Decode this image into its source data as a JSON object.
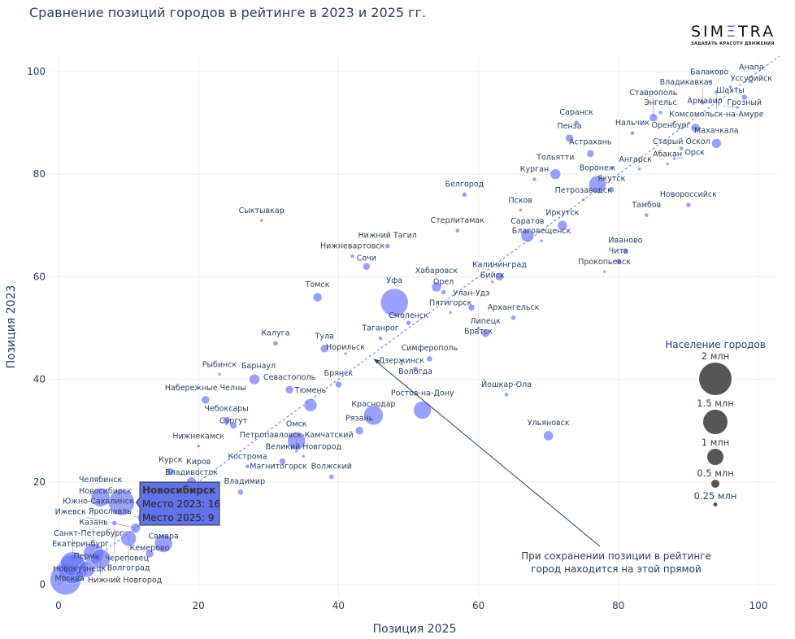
{
  "chart_data": {
    "type": "scatter",
    "title": "Сравнение позиций городов в рейтинге в 2023 и 2025 гг.",
    "xlabel": "Позиция 2025",
    "ylabel": "Позиция 2023",
    "xlim": [
      -1,
      103
    ],
    "ylim": [
      -2,
      103
    ],
    "xticks": [
      0,
      20,
      40,
      60,
      80,
      100
    ],
    "yticks": [
      0,
      20,
      40,
      60,
      80,
      100
    ],
    "grid": true,
    "marker_color": "#636efa",
    "size_legend": {
      "title": "Население городов",
      "entries": [
        {
          "label": "2 млн",
          "pop": 2
        },
        {
          "label": "1.5 млн",
          "pop": 1.5
        },
        {
          "label": "1 млн",
          "pop": 1
        },
        {
          "label": "0.5 млн",
          "pop": 0.5
        },
        {
          "label": "0.25 млн",
          "pop": 0.25
        }
      ],
      "color": "#444444",
      "placement": "right"
    },
    "annotation": {
      "text_line1": "При сохранении позиции в рейтинге",
      "text_line2": "город находится на этой прямой",
      "arrow_to": [
        45,
        44
      ]
    },
    "tooltip": {
      "city": "Новосибирск",
      "line1": "Место 2023: 16",
      "line2": "Место 2025: 9",
      "color": "#6272e8"
    },
    "points": [
      {
        "city": "Анапа",
        "x": 99,
        "y": 99,
        "pop": 0.2
      },
      {
        "city": "Уссурийск",
        "x": 99,
        "y": 98,
        "pop": 0.2
      },
      {
        "city": "Балаково",
        "x": 93,
        "y": 98,
        "pop": 0.2
      },
      {
        "city": "Шахты",
        "x": 96,
        "y": 97,
        "pop": 0.2
      },
      {
        "city": "Комсомольск-на-Амуре",
        "x": 94,
        "y": 96,
        "pop": 0.25
      },
      {
        "city": "Грозный",
        "x": 98,
        "y": 95,
        "pop": 0.35
      },
      {
        "city": "Владикавказ",
        "x": 92,
        "y": 94,
        "pop": 0.3
      },
      {
        "city": "Армавир",
        "x": 97,
        "y": 93,
        "pop": 0.2
      },
      {
        "city": "Энгельс",
        "x": 86,
        "y": 92,
        "pop": 0.25
      },
      {
        "city": "Ставрополь",
        "x": 85,
        "y": 91,
        "pop": 0.5
      },
      {
        "city": "Саранск",
        "x": 74,
        "y": 90,
        "pop": 0.3
      },
      {
        "city": "Оренбург",
        "x": 91,
        "y": 89,
        "pop": 0.55
      },
      {
        "city": "Нальчик",
        "x": 82,
        "y": 88,
        "pop": 0.25
      },
      {
        "city": "Пенза",
        "x": 73,
        "y": 87,
        "pop": 0.5
      },
      {
        "city": "Махачкала",
        "x": 94,
        "y": 86,
        "pop": 0.6
      },
      {
        "city": "Старый Оскол",
        "x": 89,
        "y": 85,
        "pop": 0.25
      },
      {
        "city": "Астрахань",
        "x": 76,
        "y": 84,
        "pop": 0.45
      },
      {
        "city": "Орск",
        "x": 88,
        "y": 83,
        "pop": 0.2
      },
      {
        "city": "Абакан",
        "x": 87,
        "y": 82,
        "pop": 0.2
      },
      {
        "city": "Ангарск",
        "x": 83,
        "y": 81,
        "pop": 0.2
      },
      {
        "city": "Тольятти",
        "x": 71,
        "y": 80,
        "pop": 0.65
      },
      {
        "city": "Курган",
        "x": 68,
        "y": 79,
        "pop": 0.25
      },
      {
        "city": "Воронеж",
        "x": 77,
        "y": 78,
        "pop": 1.05
      },
      {
        "city": "Якутск",
        "x": 79,
        "y": 77,
        "pop": 0.35
      },
      {
        "city": "Белгород",
        "x": 58,
        "y": 76,
        "pop": 0.3
      },
      {
        "city": "Петрозаводск",
        "x": 75,
        "y": 75,
        "pop": 0.2
      },
      {
        "city": "Новороссийск",
        "x": 90,
        "y": 74,
        "pop": 0.3
      },
      {
        "city": "Псков",
        "x": 66,
        "y": 73,
        "pop": 0.15
      },
      {
        "city": "Тамбов",
        "x": 84,
        "y": 72,
        "pop": 0.25
      },
      {
        "city": "Сыктывкар",
        "x": 29,
        "y": 71,
        "pop": 0.2
      },
      {
        "city": "Иркутск",
        "x": 72,
        "y": 70,
        "pop": 0.6
      },
      {
        "city": "Стерлитамак",
        "x": 57,
        "y": 69,
        "pop": 0.25
      },
      {
        "city": "Саратов",
        "x": 67,
        "y": 68,
        "pop": 0.8
      },
      {
        "city": "Благовещенск",
        "x": 69,
        "y": 67,
        "pop": 0.2
      },
      {
        "city": "Нижний Тагил",
        "x": 47,
        "y": 66,
        "pop": 0.3
      },
      {
        "city": "Иваново",
        "x": 81,
        "y": 65,
        "pop": 0.35
      },
      {
        "city": "Нижневартовск",
        "x": 42,
        "y": 64,
        "pop": 0.25
      },
      {
        "city": "Чита",
        "x": 80,
        "y": 63,
        "pop": 0.3
      },
      {
        "city": "Сочи",
        "x": 44,
        "y": 62,
        "pop": 0.45
      },
      {
        "city": "Прокопьевск",
        "x": 78,
        "y": 61,
        "pop": 0.15
      },
      {
        "city": "Калининград",
        "x": 63,
        "y": 60,
        "pop": 0.5
      },
      {
        "city": "Бийск",
        "x": 62,
        "y": 59,
        "pop": 0.2
      },
      {
        "city": "Хабаровск",
        "x": 54,
        "y": 58,
        "pop": 0.6
      },
      {
        "city": "Орел",
        "x": 55,
        "y": 57,
        "pop": 0.3
      },
      {
        "city": "Томск",
        "x": 37,
        "y": 56,
        "pop": 0.55
      },
      {
        "city": "Уфа",
        "x": 48,
        "y": 55,
        "pop": 1.7
      },
      {
        "city": "Улан-Удэ",
        "x": 59,
        "y": 54,
        "pop": 0.4
      },
      {
        "city": "Пятигорск",
        "x": 56,
        "y": 53,
        "pop": 0.15
      },
      {
        "city": "Архангельск",
        "x": 65,
        "y": 52,
        "pop": 0.3
      },
      {
        "city": "Смоленск",
        "x": 50,
        "y": 51,
        "pop": 0.3
      },
      {
        "city": "Братск",
        "x": 60,
        "y": 50,
        "pop": 0.2
      },
      {
        "city": "Липецк",
        "x": 61,
        "y": 49,
        "pop": 0.5
      },
      {
        "city": "Таганрог",
        "x": 46,
        "y": 48,
        "pop": 0.25
      },
      {
        "city": "Калуга",
        "x": 31,
        "y": 47,
        "pop": 0.3
      },
      {
        "city": "Тула",
        "x": 38,
        "y": 46,
        "pop": 0.5
      },
      {
        "city": "Норильск",
        "x": 41,
        "y": 45,
        "pop": 0.15
      },
      {
        "city": "Симферополь",
        "x": 53,
        "y": 44,
        "pop": 0.35
      },
      {
        "city": "Дзержинск",
        "x": 49,
        "y": 43,
        "pop": 0.2
      },
      {
        "city": "Вологда",
        "x": 51,
        "y": 42,
        "pop": 0.3
      },
      {
        "city": "Рыбинск",
        "x": 23,
        "y": 41,
        "pop": 0.15
      },
      {
        "city": "Барнаул",
        "x": 28,
        "y": 40,
        "pop": 0.65
      },
      {
        "city": "Брянск",
        "x": 40,
        "y": 39,
        "pop": 0.4
      },
      {
        "city": "Севастополь",
        "x": 33,
        "y": 38,
        "pop": 0.5
      },
      {
        "city": "Йошкар-Ола",
        "x": 64,
        "y": 37,
        "pop": 0.25
      },
      {
        "city": "Набережные Челны",
        "x": 21,
        "y": 36,
        "pop": 0.5
      },
      {
        "city": "Тюмень",
        "x": 36,
        "y": 35,
        "pop": 0.8
      },
      {
        "city": "Ростов-на-Дону",
        "x": 52,
        "y": 34,
        "pop": 1.1
      },
      {
        "city": "Краснодар",
        "x": 45,
        "y": 33,
        "pop": 1.2
      },
      {
        "city": "Чебоксары",
        "x": 24,
        "y": 32,
        "pop": 0.45
      },
      {
        "city": "Сургут",
        "x": 25,
        "y": 31,
        "pop": 0.4
      },
      {
        "city": "Рязань",
        "x": 43,
        "y": 30,
        "pop": 0.5
      },
      {
        "city": "Ульяновск",
        "x": 70,
        "y": 29,
        "pop": 0.6
      },
      {
        "city": "Омск",
        "x": 34,
        "y": 28,
        "pop": 1.1
      },
      {
        "city": "Нижнекамск",
        "x": 20,
        "y": 27,
        "pop": 0.2
      },
      {
        "city": "Петропавловск-Камчатский",
        "x": 34,
        "y": 26,
        "pop": 0.15
      },
      {
        "city": "Великий Новгород",
        "x": 35,
        "y": 25,
        "pop": 0.2
      },
      {
        "city": "Магнитогорск",
        "x": 32,
        "y": 24,
        "pop": 0.4
      },
      {
        "city": "Кострома",
        "x": 27,
        "y": 23,
        "pop": 0.25
      },
      {
        "city": "Курск",
        "x": 16,
        "y": 22,
        "pop": 0.45
      },
      {
        "city": "Волжский",
        "x": 39,
        "y": 21,
        "pop": 0.3
      },
      {
        "city": "Владивосток",
        "x": 19,
        "y": 20,
        "pop": 0.6
      },
      {
        "city": "Киров",
        "x": 20,
        "y": 19,
        "pop": 0.5
      },
      {
        "city": "Владимир",
        "x": 26,
        "y": 18,
        "pop": 0.35
      },
      {
        "city": "Челябинск",
        "x": 6,
        "y": 17,
        "pop": 1.15
      },
      {
        "city": "Новосибирск",
        "x": 9,
        "y": 16,
        "pop": 1.6
      },
      {
        "city": "Южно-Сахалинск",
        "x": 8,
        "y": 15,
        "pop": 0.2
      },
      {
        "city": "Ярославль",
        "x": 12,
        "y": 13,
        "pop": 0.6
      },
      {
        "city": "Череповец",
        "x": 8,
        "y": 12,
        "pop": 0.3
      },
      {
        "city": "Ижевск",
        "x": 11,
        "y": 11,
        "pop": 0.6
      },
      {
        "city": "Самара",
        "x": 15,
        "y": 8,
        "pop": 1.1
      },
      {
        "city": "Волгоград",
        "x": 10,
        "y": 9,
        "pop": 0.95
      },
      {
        "city": "Кемерово",
        "x": 13,
        "y": 6,
        "pop": 0.5
      },
      {
        "city": "Казань",
        "x": 5,
        "y": 6,
        "pop": 1.25
      },
      {
        "city": "Нижний Новгород",
        "x": 6,
        "y": 5,
        "pop": 1.2
      },
      {
        "city": "Екатеринбург",
        "x": 2,
        "y": 4,
        "pop": 1.5
      },
      {
        "city": "Пермь",
        "x": 4,
        "y": 3,
        "pop": 1.0
      },
      {
        "city": "Новокузнецк",
        "x": 3,
        "y": 2,
        "pop": 0.5
      },
      {
        "city": "Санкт-Петербург",
        "x": 2,
        "y": 3,
        "pop": 1.8
      },
      {
        "city": "Москва",
        "x": 1,
        "y": 1,
        "pop": 1.9
      }
    ]
  },
  "logo": {
    "name_a": "SIM",
    "name_b": "Ξ",
    "name_c": "TRA",
    "tagline": "ЗАДАВАТЬ КРАСОТУ ДВИЖЕНИЯ"
  }
}
